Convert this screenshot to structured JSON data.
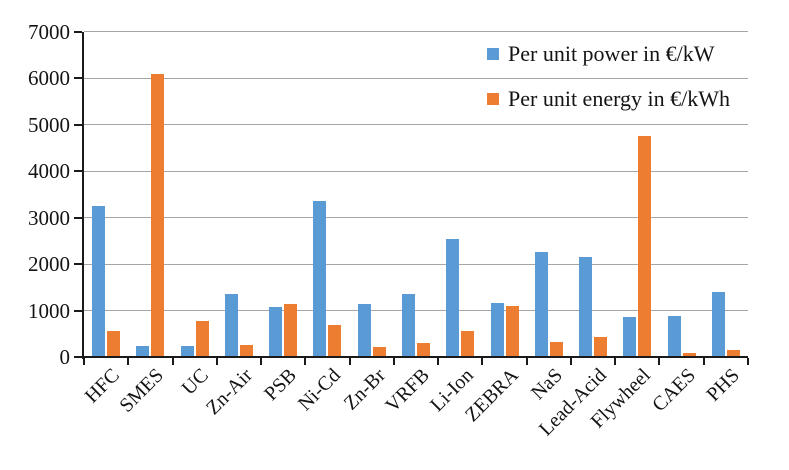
{
  "chart_data": {
    "type": "bar",
    "title": "",
    "categories": [
      "HFC",
      "SMES",
      "UC",
      "Zn-Air",
      "PSB",
      "Ni-Cd",
      "Zn-Br",
      "VRFB",
      "Li-Ion",
      "ZEBRA",
      "NaS",
      "Lead-Acid",
      "Flywheel",
      "CAES",
      "PHS"
    ],
    "series": [
      {
        "name": "Per unit power in €/kW",
        "color": "#5B9BD5",
        "values": [
          3250,
          230,
          230,
          1350,
          1080,
          3350,
          1130,
          1350,
          2530,
          1160,
          2250,
          2140,
          860,
          880,
          1400
        ]
      },
      {
        "name": "Per unit energy in €/kWh",
        "color": "#ED7D31",
        "values": [
          550,
          6080,
          770,
          260,
          1150,
          680,
          220,
          300,
          550,
          1090,
          330,
          420,
          4750,
          80,
          140
        ]
      }
    ],
    "ylim": [
      0,
      7000
    ],
    "yticks": [
      0,
      1000,
      2000,
      3000,
      4000,
      5000,
      6000,
      7000
    ],
    "xlabel": "",
    "ylabel": "",
    "grid": "horizontal-gray",
    "legend_position": "top-right-inside",
    "colors": {
      "gridline": "#a6a6a6",
      "axis": "#1a1a1a",
      "background": "#ffffff",
      "text": "#141414"
    }
  }
}
